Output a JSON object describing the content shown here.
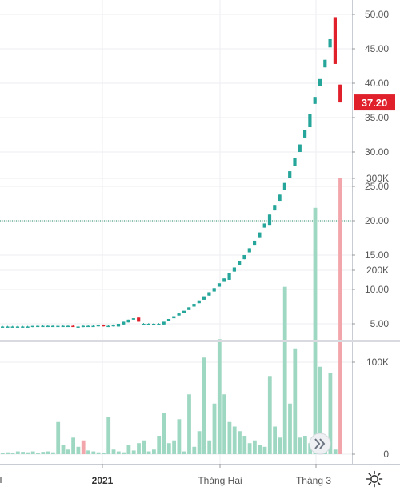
{
  "chart_data": [
    {
      "type": "candlestick",
      "title": "",
      "y_ticks": [
        "50.00",
        "45.00",
        "40.00",
        "35.00",
        "30.00",
        "25.00",
        "20.00",
        "15.00",
        "10.00",
        "5.00"
      ],
      "ylim": [
        0,
        51
      ],
      "reference_line": 20.0,
      "last_price_label": "37.20",
      "last_price": 37.2,
      "x_tick_labels": [
        "2021",
        "Tháng Hai",
        "Tháng 3"
      ],
      "colors": {
        "up": "#26a69a",
        "down": "#e0202b",
        "reference": "#1b8a5a"
      },
      "candles": [
        {
          "o": 4.6,
          "h": 4.7,
          "l": 4.5,
          "c": 4.6
        },
        {
          "o": 4.6,
          "h": 4.7,
          "l": 4.5,
          "c": 4.6
        },
        {
          "o": 4.6,
          "h": 4.7,
          "l": 4.5,
          "c": 4.6
        },
        {
          "o": 4.6,
          "h": 4.7,
          "l": 4.5,
          "c": 4.6
        },
        {
          "o": 4.6,
          "h": 4.7,
          "l": 4.5,
          "c": 4.6
        },
        {
          "o": 4.6,
          "h": 4.7,
          "l": 4.5,
          "c": 4.6
        },
        {
          "o": 4.6,
          "h": 4.7,
          "l": 4.5,
          "c": 4.7
        },
        {
          "o": 4.7,
          "h": 4.8,
          "l": 4.6,
          "c": 4.7
        },
        {
          "o": 4.7,
          "h": 4.8,
          "l": 4.6,
          "c": 4.7
        },
        {
          "o": 4.7,
          "h": 4.8,
          "l": 4.6,
          "c": 4.7
        },
        {
          "o": 4.7,
          "h": 4.8,
          "l": 4.6,
          "c": 4.7
        },
        {
          "o": 4.7,
          "h": 4.8,
          "l": 4.6,
          "c": 4.7
        },
        {
          "o": 4.7,
          "h": 4.8,
          "l": 4.6,
          "c": 4.7
        },
        {
          "o": 4.7,
          "h": 4.8,
          "l": 4.6,
          "c": 4.7
        },
        {
          "o": 4.7,
          "h": 4.8,
          "l": 4.6,
          "c": 4.6
        },
        {
          "o": 4.6,
          "h": 4.7,
          "l": 4.5,
          "c": 4.6
        },
        {
          "o": 4.6,
          "h": 4.8,
          "l": 4.5,
          "c": 4.7
        },
        {
          "o": 4.7,
          "h": 4.8,
          "l": 4.6,
          "c": 4.7
        },
        {
          "o": 4.7,
          "h": 4.8,
          "l": 4.6,
          "c": 4.7
        },
        {
          "o": 4.7,
          "h": 4.9,
          "l": 4.6,
          "c": 4.8
        },
        {
          "o": 4.8,
          "h": 4.9,
          "l": 4.6,
          "c": 4.7
        },
        {
          "o": 4.7,
          "h": 4.8,
          "l": 4.6,
          "c": 4.7
        },
        {
          "o": 4.7,
          "h": 4.9,
          "l": 4.6,
          "c": 4.8
        },
        {
          "o": 4.6,
          "h": 5.0,
          "l": 4.6,
          "c": 5.0
        },
        {
          "o": 4.9,
          "h": 5.3,
          "l": 4.9,
          "c": 5.3
        },
        {
          "o": 5.2,
          "h": 5.6,
          "l": 5.2,
          "c": 5.6
        },
        {
          "o": 5.6,
          "h": 5.8,
          "l": 5.6,
          "c": 5.8
        },
        {
          "o": 5.9,
          "h": 5.9,
          "l": 5.3,
          "c": 5.3
        },
        {
          "o": 5.0,
          "h": 5.1,
          "l": 4.8,
          "c": 5.0
        },
        {
          "o": 4.9,
          "h": 5.1,
          "l": 4.9,
          "c": 5.0
        },
        {
          "o": 5.0,
          "h": 5.1,
          "l": 4.9,
          "c": 5.0
        },
        {
          "o": 5.0,
          "h": 5.1,
          "l": 4.9,
          "c": 5.0
        },
        {
          "o": 4.9,
          "h": 5.3,
          "l": 4.9,
          "c": 5.3
        },
        {
          "o": 5.4,
          "h": 5.7,
          "l": 5.4,
          "c": 5.7
        },
        {
          "o": 5.8,
          "h": 6.1,
          "l": 5.8,
          "c": 6.1
        },
        {
          "o": 6.2,
          "h": 6.5,
          "l": 6.2,
          "c": 6.5
        },
        {
          "o": 6.6,
          "h": 6.9,
          "l": 6.6,
          "c": 6.9
        },
        {
          "o": 7.0,
          "h": 7.4,
          "l": 7.0,
          "c": 7.4
        },
        {
          "o": 7.5,
          "h": 7.9,
          "l": 7.5,
          "c": 7.9
        },
        {
          "o": 8.0,
          "h": 8.4,
          "l": 8.0,
          "c": 8.4
        },
        {
          "o": 8.5,
          "h": 9.0,
          "l": 8.5,
          "c": 9.0
        },
        {
          "o": 9.1,
          "h": 9.6,
          "l": 9.1,
          "c": 9.6
        },
        {
          "o": 9.7,
          "h": 10.2,
          "l": 9.7,
          "c": 10.2
        },
        {
          "o": 10.4,
          "h": 10.9,
          "l": 10.4,
          "c": 10.9
        },
        {
          "o": 11.1,
          "h": 11.6,
          "l": 11.1,
          "c": 11.6
        },
        {
          "o": 11.4,
          "h": 12.4,
          "l": 11.4,
          "c": 12.4
        },
        {
          "o": 12.6,
          "h": 13.2,
          "l": 12.6,
          "c": 13.2
        },
        {
          "o": 13.5,
          "h": 14.1,
          "l": 13.5,
          "c": 14.1
        },
        {
          "o": 14.4,
          "h": 15.0,
          "l": 14.4,
          "c": 15.0
        },
        {
          "o": 15.4,
          "h": 16.0,
          "l": 15.4,
          "c": 16.0
        },
        {
          "o": 16.5,
          "h": 17.1,
          "l": 16.5,
          "c": 17.1
        },
        {
          "o": 17.6,
          "h": 18.3,
          "l": 17.6,
          "c": 18.3
        },
        {
          "o": 19.0,
          "h": 19.6,
          "l": 19.0,
          "c": 19.6
        },
        {
          "o": 19.4,
          "h": 20.9,
          "l": 19.4,
          "c": 20.9
        },
        {
          "o": 21.5,
          "h": 22.3,
          "l": 21.5,
          "c": 22.3
        },
        {
          "o": 22.9,
          "h": 23.8,
          "l": 22.9,
          "c": 23.8
        },
        {
          "o": 24.5,
          "h": 25.5,
          "l": 24.5,
          "c": 25.5
        },
        {
          "o": 26.2,
          "h": 27.2,
          "l": 26.2,
          "c": 27.2
        },
        {
          "o": 28.0,
          "h": 29.1,
          "l": 28.0,
          "c": 29.1
        },
        {
          "o": 30.0,
          "h": 31.1,
          "l": 30.0,
          "c": 31.1
        },
        {
          "o": 32.1,
          "h": 33.2,
          "l": 32.1,
          "c": 33.2
        },
        {
          "o": 33.6,
          "h": 35.5,
          "l": 33.6,
          "c": 35.5
        },
        {
          "o": 37.0,
          "h": 38.0,
          "l": 37.0,
          "c": 38.0
        },
        {
          "o": 39.6,
          "h": 40.6,
          "l": 39.6,
          "c": 40.6
        },
        {
          "o": 42.3,
          "h": 43.4,
          "l": 42.3,
          "c": 43.4
        },
        {
          "o": 45.2,
          "h": 46.4,
          "l": 45.2,
          "c": 46.4
        },
        {
          "o": 49.6,
          "h": 49.6,
          "l": 42.8,
          "c": 42.8
        },
        {
          "o": 39.8,
          "h": 39.8,
          "l": 37.2,
          "c": 37.2
        }
      ]
    },
    {
      "type": "bar",
      "title": "",
      "y_ticks": [
        "300K",
        "200K",
        "100K",
        "0"
      ],
      "ylim": [
        0,
        320000
      ],
      "volumes": [
        1500,
        2000,
        1000,
        3000,
        2500,
        2000,
        3000,
        1500,
        2500,
        3000,
        2000,
        35000,
        10000,
        5000,
        18000,
        8000,
        15000,
        4000,
        3000,
        2000,
        1500,
        40000,
        5000,
        3000,
        2000,
        10000,
        4000,
        12000,
        15000,
        3000,
        5000,
        20000,
        45000,
        12000,
        15000,
        38000,
        3000,
        65000,
        8000,
        25000,
        105000,
        15000,
        55000,
        125000,
        65000,
        35000,
        30000,
        25000,
        20000,
        12000,
        15000,
        10000,
        8000,
        85000,
        30000,
        18000,
        182000,
        55000,
        115000,
        18000,
        20000,
        12000,
        268000,
        95000,
        18000,
        88000,
        5000,
        300000
      ],
      "volume_up": [
        true,
        true,
        true,
        true,
        true,
        true,
        true,
        true,
        true,
        true,
        true,
        true,
        true,
        true,
        true,
        true,
        false,
        true,
        true,
        true,
        true,
        true,
        true,
        true,
        true,
        true,
        true,
        true,
        true,
        true,
        true,
        true,
        true,
        true,
        true,
        true,
        true,
        true,
        true,
        true,
        true,
        true,
        true,
        true,
        true,
        true,
        true,
        true,
        true,
        true,
        true,
        true,
        true,
        true,
        true,
        true,
        true,
        true,
        true,
        true,
        true,
        true,
        true,
        true,
        true,
        true,
        true,
        false
      ],
      "colors": {
        "up": "#9fd8c2",
        "down": "#f2a6ab"
      }
    }
  ]
}
